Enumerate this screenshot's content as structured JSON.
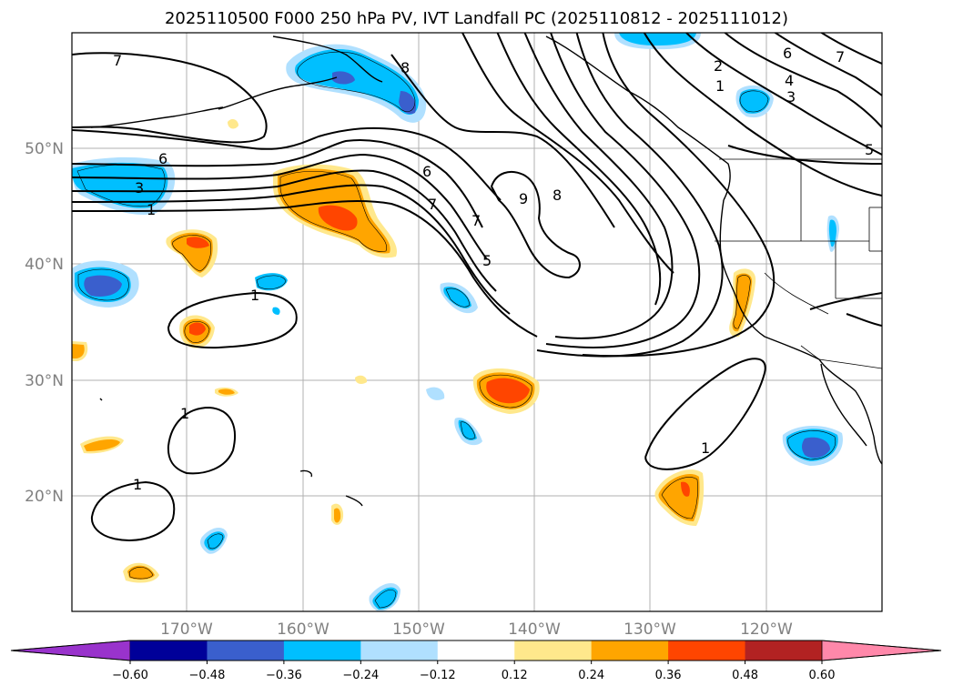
{
  "title": "2025110500 F000 250 hPa PV, IVT Landfall PC (2025110812 - 2025111012)",
  "lat_labels": [
    "50°N",
    "40°N",
    "30°N",
    "20°N"
  ],
  "lon_labels": [
    "170°W",
    "160°W",
    "150°W",
    "140°W",
    "130°W",
    "120°W"
  ],
  "colorbar": {
    "tick_labels": [
      "−0.60",
      "−0.48",
      "−0.36",
      "−0.24",
      "−0.12",
      "0.12",
      "0.24",
      "0.36",
      "0.48",
      "0.60"
    ],
    "colors": [
      "#9933cc",
      "#000099",
      "#3a5fcd",
      "#00bfff",
      "#b0e0ff",
      "#ffffff",
      "#ffe88c",
      "#ffa500",
      "#ff4500",
      "#b22222",
      "#ff88aa"
    ]
  },
  "contour_labels": [
    "7",
    "6",
    "3",
    "1",
    "6",
    "7",
    "9",
    "8",
    "7",
    "5",
    "1",
    "1",
    "1",
    "1",
    "8",
    "2",
    "1",
    "6",
    "7",
    "4",
    "3",
    "5"
  ]
}
